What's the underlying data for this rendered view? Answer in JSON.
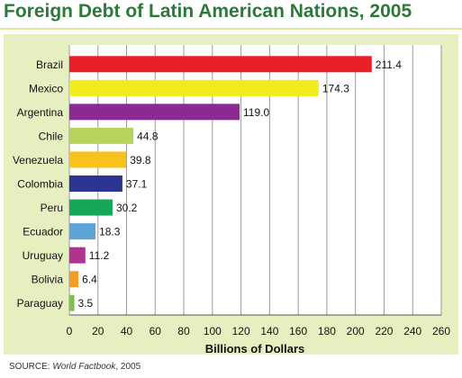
{
  "title": "Foreign Debt of Latin American Nations, 2005",
  "source": {
    "prefix": "SOURCE: ",
    "italic": "World Factbook",
    "suffix": ", 2005"
  },
  "chart_data": {
    "type": "bar",
    "orientation": "horizontal",
    "title": "Foreign Debt of Latin American Nations, 2005",
    "xlabel": "Billions of Dollars",
    "ylabel": "",
    "xlim": [
      0,
      260
    ],
    "xticks": [
      0,
      20,
      40,
      60,
      80,
      100,
      120,
      140,
      160,
      180,
      200,
      220,
      240,
      260
    ],
    "grid": true,
    "categories": [
      "Brazil",
      "Mexico",
      "Argentina",
      "Chile",
      "Venezuela",
      "Colombia",
      "Peru",
      "Ecuador",
      "Uruguay",
      "Bolivia",
      "Paraguay"
    ],
    "values": [
      211.4,
      174.3,
      119.0,
      44.8,
      39.8,
      37.1,
      30.2,
      18.3,
      11.2,
      6.4,
      3.5
    ],
    "value_labels": [
      "211.4",
      "174.3",
      "119.0",
      "44.8",
      "39.8",
      "37.1",
      "30.2",
      "18.3",
      "11.2",
      "6.4",
      "3.5"
    ],
    "colors": [
      "#e8202a",
      "#f2ec1a",
      "#8b2a92",
      "#b7d35a",
      "#f7c21c",
      "#2b3590",
      "#17a65a",
      "#5ea3d8",
      "#b0318f",
      "#f39c2a",
      "#7fbf4a"
    ]
  }
}
